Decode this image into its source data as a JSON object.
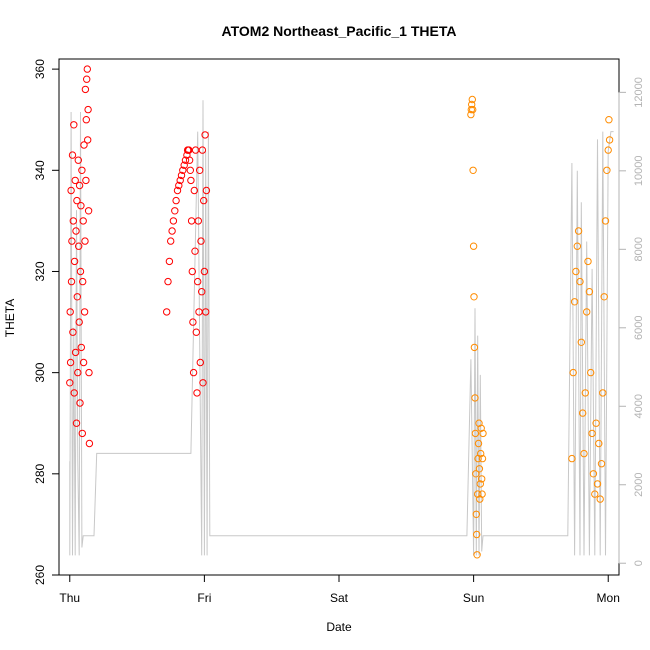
{
  "chart_data": {
    "type": "scatter",
    "title": "ATOM2 Northeast_Pacific_1 THETA",
    "xlabel": "Date",
    "ylabel": "THETA",
    "x_ticks": [
      "Thu",
      "Fri",
      "Sat",
      "Sun",
      "Mon"
    ],
    "x_tick_values": [
      0,
      1,
      2,
      3,
      4
    ],
    "xlim": [
      -0.08,
      4.08
    ],
    "ylim": [
      260,
      362
    ],
    "y_ticks": [
      260,
      280,
      300,
      320,
      340,
      360
    ],
    "y2_ticks": [
      0,
      2000,
      4000,
      6000,
      8000,
      10000,
      12000
    ],
    "y2lim": [
      -300,
      12850
    ],
    "colors": {
      "red": "#ff0000",
      "orange": "#ff8c00",
      "depth_line": "#c8c8c8",
      "axis": "#000000",
      "right_axis": "#b3b3b3"
    },
    "series": [
      {
        "color": "red",
        "segments": [
          {
            "x": [
              0.0,
              0.003,
              0.006,
              0.01,
              0.013,
              0.016,
              0.02,
              0.023,
              0.026,
              0.03,
              0.033,
              0.036,
              0.04,
              0.043,
              0.046,
              0.05,
              0.053,
              0.056,
              0.06,
              0.063,
              0.066,
              0.07,
              0.073,
              0.076,
              0.08,
              0.083,
              0.086,
              0.09,
              0.093,
              0.096,
              0.1,
              0.103,
              0.106,
              0.11,
              0.113,
              0.116,
              0.12,
              0.123,
              0.126,
              0.13,
              0.133,
              0.136,
              0.14,
              0.143,
              0.146
            ],
            "y": [
              298,
              312,
              302,
              336,
              318,
              326,
              343,
              308,
              330,
              349,
              296,
              322,
              338,
              304,
              328,
              290,
              334,
              315,
              300,
              342,
              325,
              310,
              337,
              294,
              320,
              333,
              305,
              340,
              288,
              318,
              330,
              302,
              345,
              312,
              326,
              356,
              338,
              350,
              358,
              360,
              346,
              352,
              332,
              300,
              286
            ]
          }
        ]
      },
      {
        "color": "red",
        "segments": [
          {
            "x": [
              0.72,
              0.73,
              0.74,
              0.75,
              0.76,
              0.77,
              0.78,
              0.79,
              0.8,
              0.81,
              0.82,
              0.83,
              0.84,
              0.85,
              0.86,
              0.87,
              0.875,
              0.88,
              0.885,
              0.89,
              0.895,
              0.9,
              0.905,
              0.91,
              0.915,
              0.92,
              0.925,
              0.93,
              0.935,
              0.94,
              0.945,
              0.95,
              0.955,
              0.96,
              0.965,
              0.97,
              0.975,
              0.98,
              0.985,
              0.99,
              0.995,
              1.0,
              1.005,
              1.01,
              1.015
            ],
            "y": [
              312,
              318,
              322,
              326,
              328,
              330,
              332,
              334,
              336,
              337,
              338,
              339,
              340,
              341,
              342,
              343,
              344,
              344,
              344,
              342,
              340,
              338,
              330,
              320,
              310,
              300,
              336,
              324,
              344,
              308,
              296,
              318,
              330,
              312,
              340,
              302,
              326,
              316,
              344,
              298,
              334,
              320,
              347,
              312,
              336
            ]
          }
        ]
      },
      {
        "color": "orange",
        "segments": [
          {
            "x": [
              2.98,
              2.983,
              2.986,
              2.99,
              2.993,
              2.996,
              3.0,
              3.003,
              3.006,
              3.01,
              3.013,
              3.016,
              3.02,
              3.023,
              3.026,
              3.03,
              3.033,
              3.036,
              3.04,
              3.043,
              3.046,
              3.05,
              3.053,
              3.056,
              3.06,
              3.063,
              3.066,
              3.07
            ],
            "y": [
              351,
              352,
              353,
              354,
              352,
              340,
              325,
              315,
              305,
              295,
              288,
              280,
              272,
              268,
              264,
              276,
              283,
              286,
              290,
              281,
              275,
              278,
              284,
              289,
              279,
              276,
              283,
              288
            ]
          }
        ]
      },
      {
        "color": "orange",
        "segments": [
          {
            "x": [
              3.73,
              3.74,
              3.75,
              3.76,
              3.77,
              3.78,
              3.79,
              3.8,
              3.81,
              3.82,
              3.83,
              3.84,
              3.85,
              3.86,
              3.87,
              3.88,
              3.89,
              3.9,
              3.91,
              3.92,
              3.93,
              3.94,
              3.95,
              3.96,
              3.97,
              3.98,
              3.99,
              4.0,
              4.005,
              4.01
            ],
            "y": [
              283,
              300,
              314,
              320,
              325,
              328,
              318,
              306,
              292,
              284,
              296,
              312,
              322,
              316,
              300,
              288,
              280,
              276,
              290,
              278,
              286,
              275,
              282,
              296,
              315,
              330,
              340,
              344,
              350,
              346
            ]
          }
        ]
      }
    ],
    "depth_line": {
      "x": [
        0.0,
        0.0,
        0.01,
        0.02,
        0.03,
        0.04,
        0.05,
        0.06,
        0.07,
        0.08,
        0.09,
        0.1,
        0.12,
        0.14,
        0.15,
        0.16,
        0.18,
        0.2,
        0.9,
        0.95,
        0.98,
        0.99,
        1.0,
        1.01,
        1.02,
        1.03,
        1.04,
        1.05,
        1.06,
        1.07,
        1.08,
        1.09,
        1.1,
        1.11,
        2.9,
        2.95,
        2.98,
        3.0,
        3.01,
        3.02,
        3.03,
        3.04,
        3.05,
        3.06,
        3.07,
        3.1,
        3.5,
        3.7,
        3.73,
        3.75,
        3.77,
        3.79,
        3.8,
        3.82,
        3.84,
        3.86,
        3.88,
        3.9,
        3.92,
        3.94,
        3.96,
        3.98,
        4.0,
        4.02,
        4.04
      ],
      "y": [
        2600,
        200,
        11500,
        200,
        6000,
        200,
        9000,
        2600,
        200,
        11500,
        400,
        700,
        700,
        700,
        700,
        700,
        700,
        2800,
        2800,
        11000,
        200,
        11800,
        200,
        10500,
        200,
        11000,
        700,
        700,
        700,
        700,
        700,
        700,
        700,
        700,
        700,
        700,
        5200,
        200,
        6500,
        200,
        5800,
        200,
        4800,
        300,
        700,
        700,
        700,
        700,
        10200,
        200,
        10000,
        200,
        9200,
        200,
        8200,
        200,
        7500,
        200,
        10800,
        200,
        11000,
        200,
        10500,
        11000,
        11000
      ]
    }
  }
}
